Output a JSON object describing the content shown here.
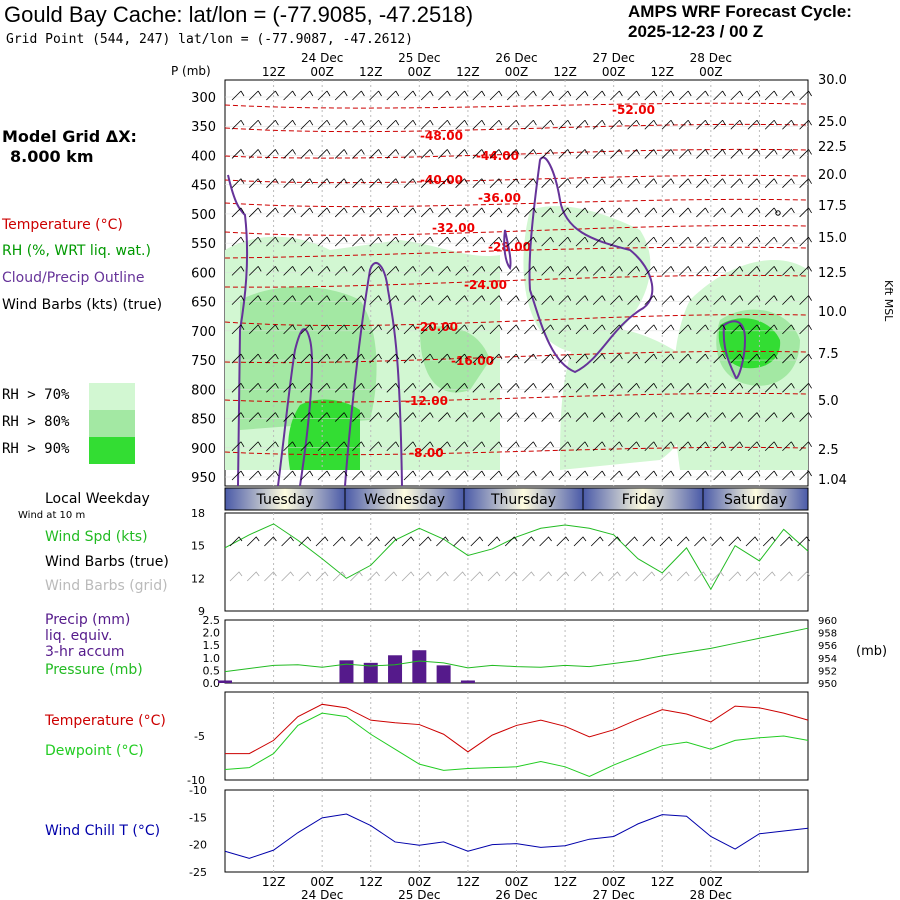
{
  "header": {
    "title": "Gould Bay Cache:  lat/lon = (-77.9085, -47.2518)",
    "subtitle": "Grid Point (544, 247) lat/lon = (-77.9087, -47.2612)",
    "cycle_line1": "AMPS WRF Forecast Cycle:",
    "cycle_line2": "2025-12-23 / 00  Z"
  },
  "left_panel": {
    "model_grid": "Model Grid ΔX:",
    "model_grid_value": "8.000 km",
    "temperature_label": "Temperature (°C)",
    "rh_label": "RH (%, WRT liq. wat.)",
    "cloud_label": "Cloud/Precip Outline",
    "barbs_label": "Wind Barbs (kts) (true)",
    "rh70": "RH > 70%",
    "rh80": "RH > 80%",
    "rh90": "RH > 90%",
    "weekday_label": "Local Weekday",
    "wind10": "Wind at 10 m",
    "wind_spd": "Wind Spd (kts)",
    "wind_barbs_true": "Wind Barbs (true)",
    "wind_barbs_grid": "Wind Barbs (grid)",
    "precip1": "Precip (mm)",
    "precip2": "liq. equiv.",
    "precip3": "3-hr accum",
    "pressure": "Pressure (mb)",
    "temp2": "Temperature (°C)",
    "dewpoint": "Dewpoint (°C)",
    "windchill": "Wind Chill T (°C)"
  },
  "colors": {
    "temperature": "#cc0000",
    "rh": "#009900",
    "cloud": "#663399",
    "rh70": "#d2f7d2",
    "rh80": "#a3e8a3",
    "rh90": "#33dd33",
    "precip": "#551a8b",
    "pressure": "#22bb22",
    "dewpoint": "#22cc22",
    "windchill": "#0000aa",
    "weekday_dark": "#4a5aa8",
    "weekday_light": "#fffde0"
  },
  "time_axis": {
    "top_times": [
      "12Z",
      "00Z",
      "12Z",
      "00Z",
      "12Z",
      "00Z",
      "12Z",
      "00Z",
      "12Z",
      "00Z"
    ],
    "top_dates": [
      "24 Dec",
      "25 Dec",
      "26 Dec",
      "27 Dec",
      "28 Dec"
    ],
    "weekdays": [
      "Tuesday",
      "Wednesday",
      "Thursday",
      "Friday",
      "Saturday"
    ]
  },
  "pressure_axis": {
    "unit": "P (mb)",
    "levels": [
      "300",
      "350",
      "400",
      "450",
      "500",
      "550",
      "600",
      "650",
      "700",
      "750",
      "800",
      "850",
      "900",
      "950"
    ],
    "height_unit": "Kft MSL",
    "height_labels": [
      "30.0",
      "25.0",
      "22.5",
      "20.0",
      "17.5",
      "15.0",
      "12.5",
      "10.0",
      "7.5",
      "5.0",
      "2.5",
      "1.04"
    ]
  },
  "chart_data": [
    {
      "type": "contour",
      "description_free": true,
      "xlabel": "",
      "ylabel": "P (mb)",
      "ylim": [
        950,
        300
      ],
      "temperature_contour_labels": [
        "-52.00",
        "-48.00",
        "-44.00",
        "-40.00",
        "-36.00",
        "-32.00",
        "-28.00",
        "-24.00",
        "-20.00",
        "-16.00",
        "-12.00",
        "-8.00"
      ]
    },
    {
      "type": "line",
      "ylabel": "Wind Spd (kts)",
      "ylim": [
        9,
        18
      ],
      "yticks": [
        "18",
        "15",
        "12",
        "9"
      ],
      "x_hours": [
        0,
        6,
        12,
        18,
        24,
        30,
        36,
        42,
        48,
        54,
        60,
        66,
        72,
        78,
        84,
        90,
        96,
        102,
        108,
        114,
        120,
        126,
        132,
        138,
        144
      ],
      "values": [
        14.8,
        16.0,
        17.0,
        15.5,
        13.8,
        12.0,
        13.2,
        15.5,
        16.6,
        15.6,
        14.1,
        14.7,
        15.8,
        16.6,
        16.9,
        16.6,
        16.0,
        13.8,
        12.5,
        14.8,
        11.0,
        15.0,
        13.6,
        16.5,
        14.5
      ]
    },
    {
      "type": "bar+line",
      "ylabel": "Precip (mm)",
      "ylim": [
        0,
        2.5
      ],
      "yticks": [
        "2.5",
        "2.0",
        "1.5",
        "1.0",
        "0.5",
        "0.0"
      ],
      "y2label": "(mb)",
      "y2lim": [
        950,
        960
      ],
      "y2ticks": [
        "960",
        "958",
        "956",
        "954",
        "952",
        "950"
      ],
      "precip_bars": [
        0.1,
        0,
        0,
        0,
        0,
        0.9,
        0.8,
        1.1,
        1.3,
        0.7,
        0.1,
        0,
        0,
        0,
        0,
        0,
        0,
        0,
        0,
        0,
        0,
        0,
        0,
        0,
        0
      ],
      "pressure": [
        951.8,
        952.3,
        952.8,
        952.9,
        952.5,
        953.0,
        952.7,
        952.9,
        953.5,
        953.2,
        952.4,
        952.8,
        952.6,
        952.5,
        952.8,
        952.6,
        953.1,
        953.6,
        954.3,
        954.9,
        955.5,
        956.3,
        957.1,
        957.9,
        958.7
      ]
    },
    {
      "type": "line",
      "ylabel": "Temperature (°C)",
      "ylim": [
        -10,
        0
      ],
      "yticks": [
        "-5",
        "-10"
      ],
      "temperature": [
        -7.0,
        -7.0,
        -5.5,
        -2.8,
        -1.4,
        -1.8,
        -3.2,
        -3.5,
        -3.7,
        -4.8,
        -6.8,
        -4.9,
        -3.8,
        -3.2,
        -3.9,
        -5.1,
        -4.3,
        -3.1,
        -2.0,
        -2.5,
        -3.4,
        -1.6,
        -1.8,
        -2.4,
        -3.2
      ],
      "dewpoint": [
        -8.8,
        -8.6,
        -7.0,
        -3.8,
        -2.4,
        -2.8,
        -4.8,
        -6.5,
        -8.2,
        -8.9,
        -8.7,
        -8.6,
        -8.5,
        -7.9,
        -8.5,
        -9.6,
        -8.3,
        -7.2,
        -6.1,
        -5.7,
        -6.5,
        -5.5,
        -5.2,
        -5.0,
        -5.5
      ]
    },
    {
      "type": "line",
      "ylabel": "Wind Chill T (°C)",
      "ylim": [
        -25,
        -10
      ],
      "yticks": [
        "-10",
        "-15",
        "-20",
        "-25"
      ],
      "values": [
        -21.2,
        -22.5,
        -21.0,
        -17.8,
        -15.1,
        -14.4,
        -16.5,
        -19.5,
        -20.1,
        -19.5,
        -21.2,
        -20.0,
        -19.8,
        -20.5,
        -20.2,
        -19.0,
        -18.5,
        -16.2,
        -14.5,
        -14.8,
        -18.5,
        -20.8,
        -18.0,
        -17.5,
        -17.0
      ]
    }
  ]
}
